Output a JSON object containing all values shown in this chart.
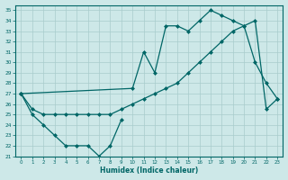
{
  "xlabel": "Humidex (Indice chaleur)",
  "background_color": "#cde8e8",
  "line_color": "#006666",
  "grid_color": "#a8cccc",
  "xlim": [
    -0.5,
    23.5
  ],
  "ylim": [
    21,
    35.5
  ],
  "yticks": [
    21,
    22,
    23,
    24,
    25,
    26,
    27,
    28,
    29,
    30,
    31,
    32,
    33,
    34,
    35
  ],
  "xticks": [
    0,
    1,
    2,
    3,
    4,
    5,
    6,
    7,
    8,
    9,
    10,
    11,
    12,
    13,
    14,
    15,
    16,
    17,
    18,
    19,
    20,
    21,
    22,
    23
  ],
  "series1_zigzag": {
    "x": [
      0,
      1,
      2,
      3,
      4,
      5,
      6,
      7,
      8,
      9
    ],
    "y": [
      27,
      25,
      24,
      23,
      22,
      22,
      22,
      21,
      22,
      24.5
    ]
  },
  "series2_diagonal": {
    "x": [
      0,
      1,
      2,
      3,
      4,
      5,
      6,
      7,
      8,
      9,
      10,
      11,
      12,
      13,
      14,
      15,
      16,
      17,
      18,
      19,
      20,
      21,
      22,
      23
    ],
    "y": [
      27,
      25.5,
      25,
      25,
      25,
      25,
      25,
      25,
      25,
      25.5,
      26,
      26.5,
      27,
      27.5,
      28,
      29,
      30,
      31,
      32,
      33,
      33.5,
      34,
      25.5,
      26.5
    ]
  },
  "series3_top": {
    "x": [
      0,
      10,
      11,
      12,
      13,
      14,
      15,
      16,
      17,
      18,
      19,
      20,
      21,
      22,
      23
    ],
    "y": [
      27,
      27.5,
      31,
      29,
      33.5,
      33.5,
      33,
      34,
      35,
      34.5,
      34,
      33.5,
      30,
      28,
      26.5
    ]
  }
}
